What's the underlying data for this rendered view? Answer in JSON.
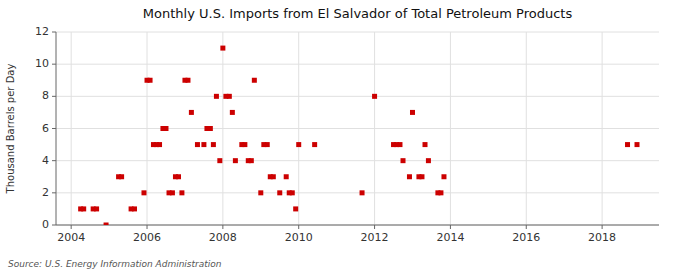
{
  "chart_data": {
    "type": "scatter",
    "title": "Monthly U.S. Imports from El Salvador of Total Petroleum Products",
    "y_label": "Thousand Barrels per Day",
    "annotations": [
      "Source: U.S. Energy Information Administration"
    ],
    "color": "#cc0000",
    "marker": "square",
    "grid": true,
    "xlim": [
      2003.6,
      2019.5
    ],
    "ylim": [
      0,
      12
    ],
    "xticks": [
      2004,
      2006,
      2008,
      2010,
      2012,
      2014,
      2016,
      2018
    ],
    "yticks": [
      0,
      2,
      4,
      6,
      8,
      10,
      12
    ],
    "x": [
      2004.25,
      2004.33,
      2004.58,
      2004.67,
      2004.92,
      2005.25,
      2005.33,
      2005.58,
      2005.67,
      2005.92,
      2006.0,
      2006.08,
      2006.17,
      2006.25,
      2006.33,
      2006.42,
      2006.5,
      2006.58,
      2006.67,
      2006.75,
      2006.83,
      2006.92,
      2007.0,
      2007.08,
      2007.17,
      2007.33,
      2007.5,
      2007.58,
      2007.67,
      2007.75,
      2007.83,
      2007.92,
      2008.0,
      2008.08,
      2008.17,
      2008.25,
      2008.33,
      2008.5,
      2008.58,
      2008.67,
      2008.75,
      2008.83,
      2009.0,
      2009.08,
      2009.17,
      2009.25,
      2009.33,
      2009.5,
      2009.67,
      2009.75,
      2009.83,
      2009.92,
      2010.0,
      2010.42,
      2011.67,
      2012.0,
      2012.5,
      2012.58,
      2012.67,
      2012.75,
      2012.92,
      2013.0,
      2013.17,
      2013.25,
      2013.33,
      2013.42,
      2013.67,
      2013.75,
      2013.83,
      2018.67,
      2018.92
    ],
    "values": [
      1,
      1,
      1,
      1,
      0,
      3,
      3,
      1,
      1,
      2,
      9,
      9,
      5,
      5,
      5,
      6,
      6,
      2,
      2,
      3,
      3,
      2,
      9,
      9,
      7,
      5,
      5,
      6,
      6,
      5,
      8,
      4,
      11,
      8,
      8,
      7,
      4,
      5,
      5,
      4,
      4,
      9,
      2,
      5,
      5,
      3,
      3,
      2,
      3,
      2,
      2,
      1,
      5,
      5,
      2,
      8,
      5,
      5,
      5,
      4,
      3,
      7,
      3,
      3,
      5,
      4,
      2,
      2,
      3,
      5,
      5
    ]
  }
}
